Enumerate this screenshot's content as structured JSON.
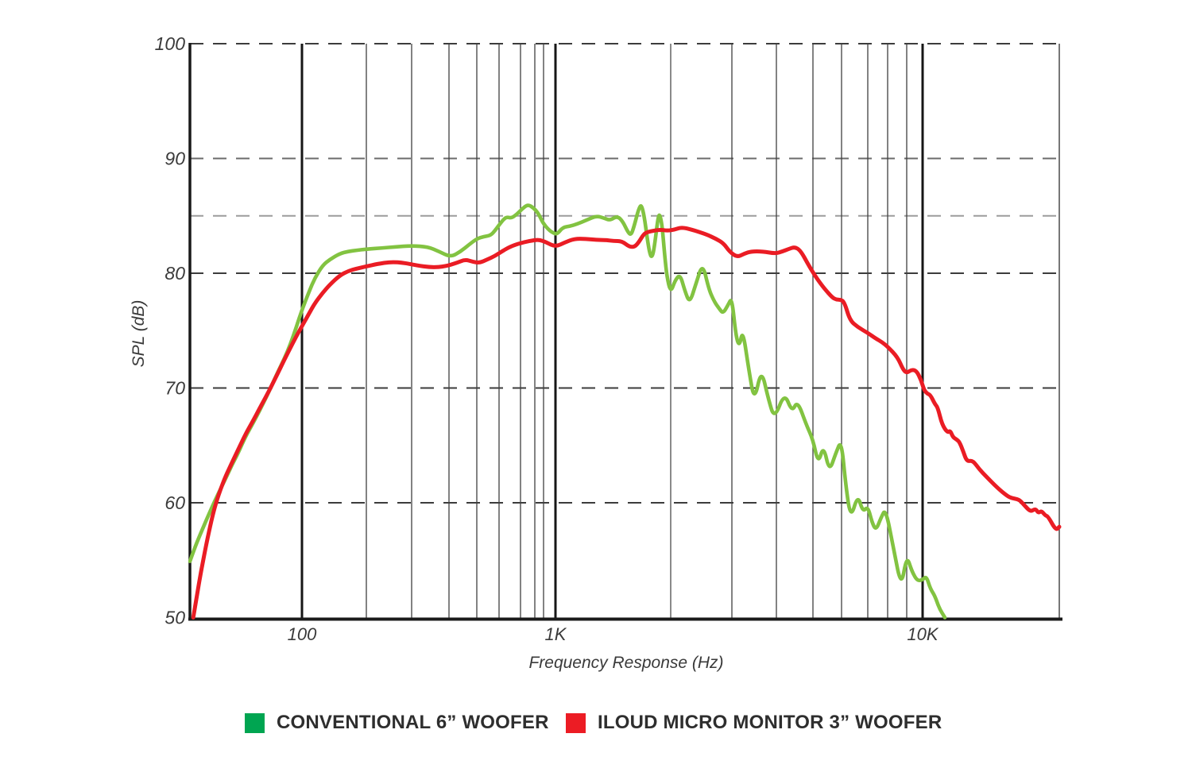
{
  "chart_data": {
    "type": "line",
    "title": "",
    "xlabel": "Frequency Response (Hz)",
    "ylabel": "SPL (dB)",
    "x_scale": "log",
    "ylim": [
      50,
      100
    ],
    "grid": "on",
    "legend_position": "bottom",
    "colors": {
      "conventional_curve": "#82C341",
      "iloud_curve": "#EA1C24",
      "legend_green_swatch": "#00A551",
      "legend_red_swatch": "#EC1C24",
      "axis_text": "#3A3A3A",
      "axis_line": "#1A1A1A"
    },
    "y_ticks": [
      {
        "db": 100,
        "label": "100"
      },
      {
        "db": 90,
        "label": "90"
      },
      {
        "db": 80,
        "label": "80"
      },
      {
        "db": 70,
        "label": "70"
      },
      {
        "db": 60,
        "label": "60"
      },
      {
        "db": 50,
        "label": "50"
      }
    ],
    "x_ticks": [
      {
        "f": 100,
        "label": "100"
      },
      {
        "f": 1000,
        "label": "1K"
      },
      {
        "f": 10000,
        "label": "10K"
      }
    ],
    "h_gridlines": [
      {
        "db": 100,
        "shade": "dark"
      },
      {
        "db": 90,
        "shade": "medium"
      },
      {
        "db": 85,
        "shade": "light"
      },
      {
        "db": 80,
        "shade": "dark"
      },
      {
        "db": 70,
        "shade": "dark"
      },
      {
        "db": 60,
        "shade": "dark"
      }
    ],
    "v_gridlines": [
      {
        "f": 100,
        "style": "major"
      },
      {
        "f": 200,
        "style": "thin"
      },
      {
        "f": 300,
        "style": "thin"
      },
      {
        "f": 400,
        "style": "thin"
      },
      {
        "f": 500,
        "style": "thin"
      },
      {
        "f": 600,
        "style": "thin"
      },
      {
        "f": 700,
        "style": "thin"
      },
      {
        "f": 800,
        "style": "thin"
      },
      {
        "f": 900,
        "style": "thin"
      },
      {
        "f": 1000,
        "style": "major"
      },
      {
        "f": 2000,
        "style": "gray"
      },
      {
        "f": 3000,
        "style": "thin"
      },
      {
        "f": 4000,
        "style": "thin"
      },
      {
        "f": 5000,
        "style": "thin"
      },
      {
        "f": 6000,
        "style": "thin"
      },
      {
        "f": 7000,
        "style": "thin"
      },
      {
        "f": 8000,
        "style": "thin"
      },
      {
        "f": 9000,
        "style": "thin"
      },
      {
        "f": 10000,
        "style": "major"
      }
    ],
    "x_axis_anchors": {
      "f": [
        36.2,
        100,
        200,
        300,
        400,
        500,
        600,
        700,
        800,
        900,
        1000,
        2000,
        3000,
        4000,
        5000,
        6000,
        7000,
        8000,
        9000,
        10000,
        23600
      ],
      "x": [
        239,
        380,
        461,
        518,
        565,
        600,
        628,
        655,
        673,
        684,
        699,
        844,
        921,
        977,
        1023,
        1059,
        1092,
        1117,
        1141,
        1161,
        1333
      ]
    },
    "series": [
      {
        "name": "CONVENTIONAL 6” WOOFER",
        "color": "#82C341",
        "stroke_width": 4.6,
        "points": [
          [
            36.2,
            54.9
          ],
          [
            38,
            56.2
          ],
          [
            40,
            57.4
          ],
          [
            42,
            58.5
          ],
          [
            45,
            60.0
          ],
          [
            48,
            61.3
          ],
          [
            50,
            62.1
          ],
          [
            53,
            63.3
          ],
          [
            56,
            64.3
          ],
          [
            60,
            65.8
          ],
          [
            64,
            66.9
          ],
          [
            68,
            68.0
          ],
          [
            72,
            69.1
          ],
          [
            76,
            70.2
          ],
          [
            80,
            71.3
          ],
          [
            85,
            72.5
          ],
          [
            90,
            73.8
          ],
          [
            95,
            75.3
          ],
          [
            100,
            76.8
          ],
          [
            108,
            78.4
          ],
          [
            115,
            79.6
          ],
          [
            125,
            80.7
          ],
          [
            135,
            81.2
          ],
          [
            150,
            81.7
          ],
          [
            165,
            81.9
          ],
          [
            180,
            82.0
          ],
          [
            200,
            82.1
          ],
          [
            230,
            82.2
          ],
          [
            260,
            82.3
          ],
          [
            300,
            82.4
          ],
          [
            340,
            82.3
          ],
          [
            370,
            81.9
          ],
          [
            405,
            81.4
          ],
          [
            440,
            81.9
          ],
          [
            470,
            82.5
          ],
          [
            500,
            83.0
          ],
          [
            530,
            83.2
          ],
          [
            560,
            83.3
          ],
          [
            580,
            83.7
          ],
          [
            600,
            84.2
          ],
          [
            620,
            84.7
          ],
          [
            635,
            84.9
          ],
          [
            655,
            84.8
          ],
          [
            680,
            85.1
          ],
          [
            710,
            85.6
          ],
          [
            750,
            86.0
          ],
          [
            790,
            85.7
          ],
          [
            840,
            85.2
          ],
          [
            890,
            84.4
          ],
          [
            940,
            83.8
          ],
          [
            980,
            83.5
          ],
          [
            1010,
            83.4
          ],
          [
            1045,
            84.0
          ],
          [
            1090,
            84.1
          ],
          [
            1140,
            84.3
          ],
          [
            1200,
            84.6
          ],
          [
            1280,
            85.0
          ],
          [
            1340,
            84.8
          ],
          [
            1390,
            84.6
          ],
          [
            1450,
            85.0
          ],
          [
            1500,
            84.5
          ],
          [
            1545,
            83.6
          ],
          [
            1575,
            83.3
          ],
          [
            1605,
            84.1
          ],
          [
            1655,
            85.8
          ],
          [
            1680,
            85.9
          ],
          [
            1705,
            85.0
          ],
          [
            1735,
            83.1
          ],
          [
            1765,
            81.6
          ],
          [
            1790,
            81.4
          ],
          [
            1815,
            82.4
          ],
          [
            1855,
            85.0
          ],
          [
            1875,
            85.1
          ],
          [
            1900,
            84.1
          ],
          [
            1930,
            81.5
          ],
          [
            1955,
            79.7
          ],
          [
            2000,
            78.3
          ],
          [
            2060,
            79.4
          ],
          [
            2130,
            79.9
          ],
          [
            2200,
            78.4
          ],
          [
            2270,
            77.4
          ],
          [
            2360,
            79.0
          ],
          [
            2470,
            80.9
          ],
          [
            2570,
            78.7
          ],
          [
            2660,
            77.6
          ],
          [
            2760,
            76.9
          ],
          [
            2830,
            76.5
          ],
          [
            2920,
            77.2
          ],
          [
            3000,
            77.9
          ],
          [
            3080,
            74.5
          ],
          [
            3150,
            73.6
          ],
          [
            3220,
            75.1
          ],
          [
            3350,
            71.5
          ],
          [
            3470,
            68.8
          ],
          [
            3630,
            71.7
          ],
          [
            3800,
            69.0
          ],
          [
            3950,
            67.3
          ],
          [
            4200,
            69.6
          ],
          [
            4400,
            67.9
          ],
          [
            4550,
            68.9
          ],
          [
            4800,
            66.8
          ],
          [
            5000,
            65.5
          ],
          [
            5170,
            63.4
          ],
          [
            5350,
            65.0
          ],
          [
            5550,
            62.7
          ],
          [
            5780,
            64.3
          ],
          [
            5990,
            65.5
          ],
          [
            6150,
            61.5
          ],
          [
            6330,
            58.6
          ],
          [
            6600,
            60.7
          ],
          [
            6800,
            59.2
          ],
          [
            7000,
            59.7
          ],
          [
            7200,
            58.3
          ],
          [
            7400,
            57.6
          ],
          [
            7650,
            58.7
          ],
          [
            7900,
            59.5
          ],
          [
            8300,
            56.0
          ],
          [
            8700,
            52.6
          ],
          [
            9000,
            55.4
          ],
          [
            9300,
            54.1
          ],
          [
            9550,
            53.4
          ],
          [
            9750,
            53.2
          ],
          [
            10000,
            53.3
          ],
          [
            10250,
            53.6
          ],
          [
            10500,
            52.5
          ],
          [
            10800,
            51.9
          ],
          [
            11100,
            50.8
          ],
          [
            11500,
            50.0
          ]
        ]
      },
      {
        "name": "ILOUD MICRO MONITOR 3” WOOFER",
        "color": "#EA1C24",
        "stroke_width": 5,
        "points": [
          [
            37.3,
            50.0
          ],
          [
            38.5,
            51.8
          ],
          [
            40,
            54.0
          ],
          [
            42,
            56.4
          ],
          [
            44,
            58.5
          ],
          [
            46,
            60.1
          ],
          [
            48,
            61.3
          ],
          [
            50,
            62.3
          ],
          [
            53,
            63.5
          ],
          [
            56,
            64.6
          ],
          [
            60,
            66.0
          ],
          [
            64,
            67.1
          ],
          [
            68,
            68.2
          ],
          [
            72,
            69.2
          ],
          [
            76,
            70.2
          ],
          [
            80,
            71.2
          ],
          [
            85,
            72.4
          ],
          [
            90,
            73.5
          ],
          [
            95,
            74.5
          ],
          [
            100,
            75.4
          ],
          [
            108,
            76.5
          ],
          [
            115,
            77.4
          ],
          [
            125,
            78.3
          ],
          [
            135,
            79.0
          ],
          [
            150,
            79.8
          ],
          [
            165,
            80.2
          ],
          [
            180,
            80.4
          ],
          [
            200,
            80.6
          ],
          [
            220,
            80.8
          ],
          [
            250,
            81.0
          ],
          [
            280,
            80.9
          ],
          [
            310,
            80.7
          ],
          [
            350,
            80.5
          ],
          [
            390,
            80.6
          ],
          [
            425,
            80.9
          ],
          [
            455,
            81.2
          ],
          [
            485,
            81.0
          ],
          [
            510,
            80.9
          ],
          [
            545,
            81.2
          ],
          [
            580,
            81.5
          ],
          [
            620,
            82.0
          ],
          [
            660,
            82.4
          ],
          [
            720,
            82.7
          ],
          [
            800,
            82.9
          ],
          [
            860,
            82.9
          ],
          [
            920,
            82.7
          ],
          [
            1000,
            82.3
          ],
          [
            1060,
            82.7
          ],
          [
            1120,
            83.0
          ],
          [
            1200,
            83.0
          ],
          [
            1280,
            82.9
          ],
          [
            1350,
            82.9
          ],
          [
            1420,
            82.8
          ],
          [
            1490,
            82.8
          ],
          [
            1560,
            82.3
          ],
          [
            1610,
            82.3
          ],
          [
            1650,
            82.7
          ],
          [
            1700,
            83.4
          ],
          [
            1740,
            83.6
          ],
          [
            1800,
            83.7
          ],
          [
            1880,
            83.8
          ],
          [
            1960,
            83.7
          ],
          [
            2050,
            83.8
          ],
          [
            2150,
            84.0
          ],
          [
            2300,
            83.8
          ],
          [
            2530,
            83.4
          ],
          [
            2700,
            83.0
          ],
          [
            2840,
            82.6
          ],
          [
            2950,
            81.9
          ],
          [
            3100,
            81.4
          ],
          [
            3250,
            81.7
          ],
          [
            3400,
            81.9
          ],
          [
            3650,
            81.9
          ],
          [
            3980,
            81.7
          ],
          [
            4150,
            81.9
          ],
          [
            4300,
            82.1
          ],
          [
            4470,
            82.3
          ],
          [
            4630,
            82.0
          ],
          [
            4870,
            80.7
          ],
          [
            5060,
            79.8
          ],
          [
            5250,
            79.1
          ],
          [
            5400,
            78.6
          ],
          [
            5650,
            77.9
          ],
          [
            5800,
            77.7
          ],
          [
            5950,
            77.7
          ],
          [
            6100,
            77.5
          ],
          [
            6300,
            75.9
          ],
          [
            6600,
            75.3
          ],
          [
            7000,
            74.8
          ],
          [
            7400,
            74.3
          ],
          [
            7700,
            74.0
          ],
          [
            8000,
            73.6
          ],
          [
            8500,
            72.7
          ],
          [
            8800,
            71.6
          ],
          [
            9000,
            71.3
          ],
          [
            9300,
            71.6
          ],
          [
            9600,
            71.5
          ],
          [
            9900,
            70.7
          ],
          [
            10100,
            69.8
          ],
          [
            10300,
            69.5
          ],
          [
            10500,
            69.4
          ],
          [
            10800,
            68.6
          ],
          [
            11000,
            68.3
          ],
          [
            11300,
            66.8
          ],
          [
            11700,
            66.1
          ],
          [
            11900,
            66.3
          ],
          [
            12100,
            65.7
          ],
          [
            12400,
            65.5
          ],
          [
            12600,
            65.3
          ],
          [
            12900,
            64.5
          ],
          [
            13200,
            63.6
          ],
          [
            13700,
            63.7
          ],
          [
            14300,
            62.9
          ],
          [
            14900,
            62.3
          ],
          [
            16000,
            61.3
          ],
          [
            17000,
            60.6
          ],
          [
            17500,
            60.4
          ],
          [
            18300,
            60.3
          ],
          [
            18800,
            59.9
          ],
          [
            19700,
            59.2
          ],
          [
            20300,
            59.5
          ],
          [
            20700,
            59.1
          ],
          [
            21100,
            59.3
          ],
          [
            21600,
            58.9
          ],
          [
            22000,
            58.8
          ],
          [
            23100,
            57.6
          ],
          [
            23600,
            57.9
          ]
        ]
      }
    ],
    "legend": [
      {
        "label": "CONVENTIONAL 6” WOOFER",
        "color": "#00A551"
      },
      {
        "label": "ILOUD MICRO MONITOR 3” WOOFER",
        "color": "#EC1C24"
      }
    ]
  }
}
